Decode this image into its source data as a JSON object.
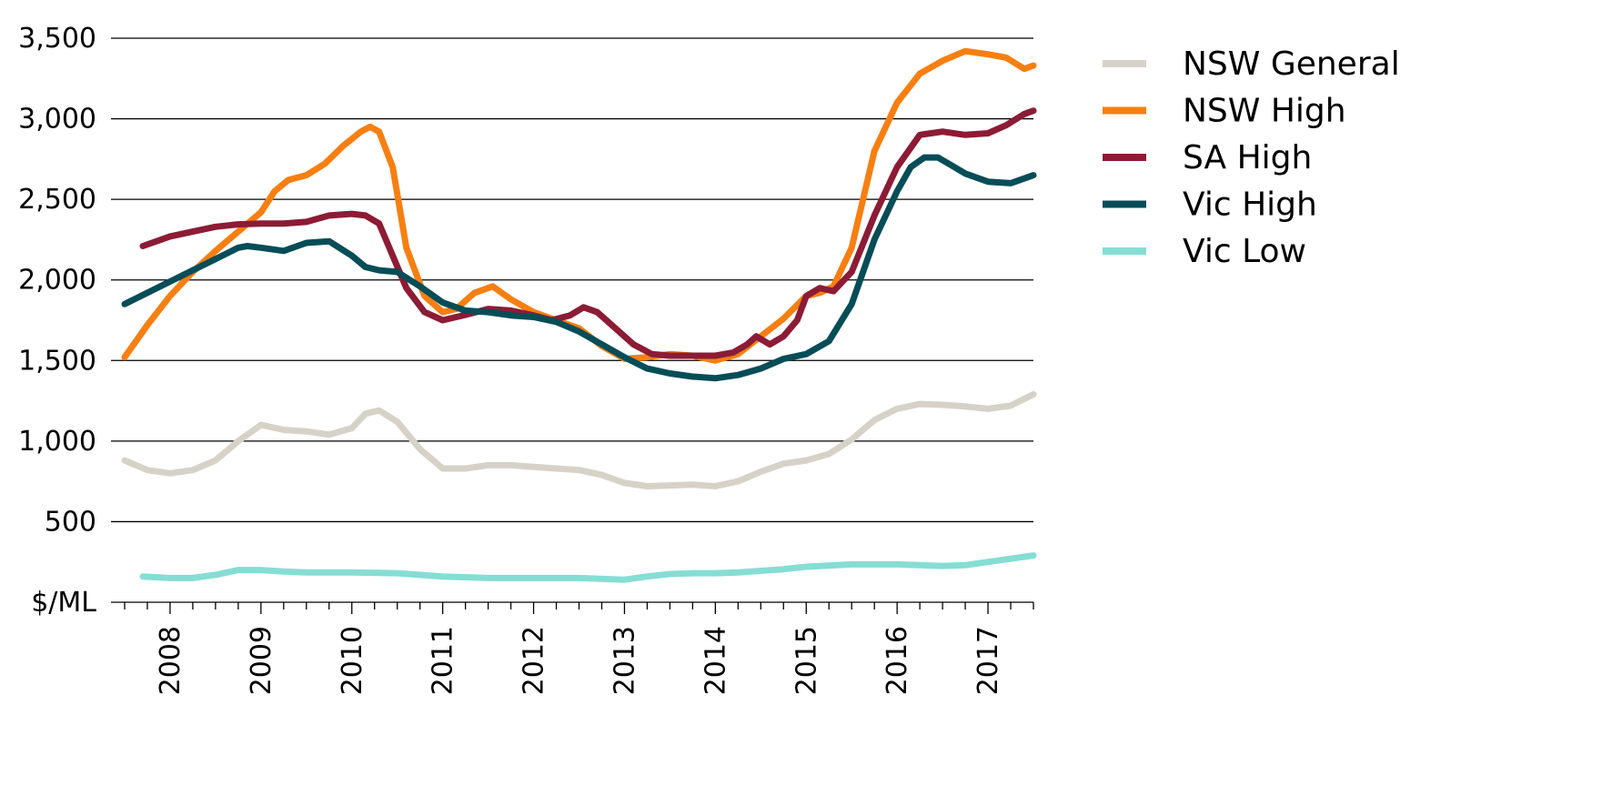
{
  "chart_data": {
    "type": "line",
    "title": "",
    "xlabel": "",
    "ylabel": "$/ML",
    "ylim": [
      0,
      3500
    ],
    "xlim": [
      2007.5,
      2017.5
    ],
    "y_ticks": [
      500,
      1000,
      1500,
      2000,
      2500,
      3000,
      3500
    ],
    "y_tick_labels": [
      "500",
      "1,000",
      "1,500",
      "2,000",
      "2,500",
      "3,000",
      "3,500"
    ],
    "x_tick_labels": [
      "2008",
      "2009",
      "2010",
      "2011",
      "2012",
      "2013",
      "2014",
      "2015",
      "2016",
      "2017"
    ],
    "x_tick_positions": [
      2008,
      2009,
      2010,
      2011,
      2012,
      2013,
      2014,
      2015,
      2016,
      2017
    ],
    "grid": true,
    "legend_position": "top-right",
    "series": [
      {
        "name": "NSW General",
        "color": "#d6d2c8",
        "x": [
          2007.5,
          2007.75,
          2008.0,
          2008.25,
          2008.5,
          2008.75,
          2009.0,
          2009.25,
          2009.5,
          2009.75,
          2010.0,
          2010.15,
          2010.3,
          2010.5,
          2010.75,
          2011.0,
          2011.25,
          2011.5,
          2011.75,
          2012.0,
          2012.25,
          2012.5,
          2012.75,
          2013.0,
          2013.25,
          2013.5,
          2013.75,
          2014.0,
          2014.25,
          2014.5,
          2014.75,
          2015.0,
          2015.25,
          2015.5,
          2015.75,
          2016.0,
          2016.25,
          2016.5,
          2016.75,
          2017.0,
          2017.25,
          2017.5
        ],
        "values": [
          880,
          820,
          800,
          820,
          880,
          1000,
          1100,
          1070,
          1060,
          1040,
          1080,
          1170,
          1190,
          1120,
          950,
          830,
          830,
          850,
          850,
          840,
          830,
          820,
          790,
          740,
          720,
          725,
          730,
          720,
          750,
          810,
          860,
          880,
          920,
          1010,
          1130,
          1200,
          1230,
          1225,
          1215,
          1200,
          1220,
          1290
        ]
      },
      {
        "name": "NSW High",
        "color": "#f77f11",
        "x": [
          2007.5,
          2007.75,
          2008.0,
          2008.25,
          2008.5,
          2008.75,
          2009.0,
          2009.15,
          2009.3,
          2009.5,
          2009.7,
          2009.9,
          2010.1,
          2010.2,
          2010.3,
          2010.45,
          2010.6,
          2010.8,
          2011.0,
          2011.15,
          2011.35,
          2011.55,
          2011.75,
          2012.0,
          2012.25,
          2012.5,
          2012.75,
          2013.0,
          2013.25,
          2013.5,
          2013.75,
          2014.0,
          2014.25,
          2014.5,
          2014.75,
          2015.0,
          2015.15,
          2015.3,
          2015.5,
          2015.75,
          2016.0,
          2016.25,
          2016.5,
          2016.75,
          2017.0,
          2017.2,
          2017.4,
          2017.5
        ],
        "values": [
          1520,
          1720,
          1900,
          2050,
          2180,
          2300,
          2420,
          2550,
          2620,
          2650,
          2720,
          2830,
          2920,
          2950,
          2920,
          2700,
          2200,
          1900,
          1800,
          1820,
          1920,
          1960,
          1880,
          1800,
          1750,
          1700,
          1590,
          1510,
          1520,
          1540,
          1530,
          1500,
          1540,
          1650,
          1760,
          1900,
          1920,
          1960,
          2200,
          2800,
          3100,
          3280,
          3360,
          3420,
          3400,
          3380,
          3310,
          3330
        ]
      },
      {
        "name": "SA High",
        "color": "#8c1c35",
        "x": [
          2007.7,
          2008.0,
          2008.25,
          2008.5,
          2008.75,
          2009.0,
          2009.25,
          2009.5,
          2009.75,
          2010.0,
          2010.15,
          2010.3,
          2010.45,
          2010.6,
          2010.8,
          2011.0,
          2011.15,
          2011.3,
          2011.5,
          2011.75,
          2012.0,
          2012.2,
          2012.4,
          2012.55,
          2012.7,
          2012.9,
          2013.1,
          2013.3,
          2013.5,
          2013.75,
          2014.0,
          2014.2,
          2014.35,
          2014.45,
          2014.6,
          2014.75,
          2014.9,
          2015.0,
          2015.15,
          2015.3,
          2015.5,
          2015.75,
          2016.0,
          2016.25,
          2016.5,
          2016.75,
          2017.0,
          2017.2,
          2017.4,
          2017.5
        ],
        "values": [
          2210,
          2270,
          2300,
          2330,
          2345,
          2350,
          2350,
          2360,
          2400,
          2410,
          2400,
          2350,
          2150,
          1950,
          1800,
          1750,
          1770,
          1790,
          1820,
          1810,
          1780,
          1750,
          1780,
          1830,
          1800,
          1700,
          1600,
          1540,
          1530,
          1530,
          1530,
          1550,
          1600,
          1650,
          1600,
          1650,
          1750,
          1900,
          1950,
          1930,
          2050,
          2400,
          2700,
          2900,
          2920,
          2900,
          2910,
          2960,
          3030,
          3050
        ]
      },
      {
        "name": "Vic High",
        "color": "#064d57",
        "x": [
          2007.5,
          2007.75,
          2008.0,
          2008.25,
          2008.5,
          2008.75,
          2008.85,
          2009.0,
          2009.25,
          2009.5,
          2009.75,
          2010.0,
          2010.15,
          2010.3,
          2010.5,
          2010.75,
          2011.0,
          2011.25,
          2011.5,
          2011.75,
          2012.0,
          2012.25,
          2012.5,
          2012.75,
          2013.0,
          2013.25,
          2013.5,
          2013.75,
          2014.0,
          2014.25,
          2014.5,
          2014.75,
          2015.0,
          2015.25,
          2015.5,
          2015.75,
          2016.0,
          2016.15,
          2016.3,
          2016.45,
          2016.6,
          2016.75,
          2017.0,
          2017.25,
          2017.5
        ],
        "values": [
          1850,
          1920,
          1990,
          2060,
          2130,
          2200,
          2210,
          2200,
          2180,
          2230,
          2240,
          2150,
          2080,
          2060,
          2050,
          1960,
          1860,
          1810,
          1800,
          1780,
          1770,
          1740,
          1680,
          1600,
          1520,
          1450,
          1420,
          1400,
          1390,
          1410,
          1450,
          1510,
          1540,
          1620,
          1850,
          2250,
          2550,
          2700,
          2760,
          2760,
          2710,
          2660,
          2610,
          2600,
          2650
        ]
      },
      {
        "name": "Vic Low",
        "color": "#86ddd4",
        "x": [
          2007.7,
          2008.0,
          2008.25,
          2008.5,
          2008.75,
          2009.0,
          2009.25,
          2009.5,
          2009.75,
          2010.0,
          2010.5,
          2011.0,
          2011.5,
          2012.0,
          2012.5,
          2013.0,
          2013.25,
          2013.5,
          2013.75,
          2014.0,
          2014.25,
          2014.5,
          2014.75,
          2015.0,
          2015.5,
          2016.0,
          2016.25,
          2016.5,
          2016.75,
          2017.0,
          2017.25,
          2017.5
        ],
        "values": [
          160,
          150,
          150,
          170,
          200,
          200,
          190,
          185,
          185,
          185,
          180,
          160,
          150,
          150,
          150,
          140,
          160,
          175,
          180,
          180,
          185,
          195,
          205,
          220,
          235,
          235,
          230,
          225,
          230,
          250,
          270,
          290
        ]
      }
    ]
  }
}
